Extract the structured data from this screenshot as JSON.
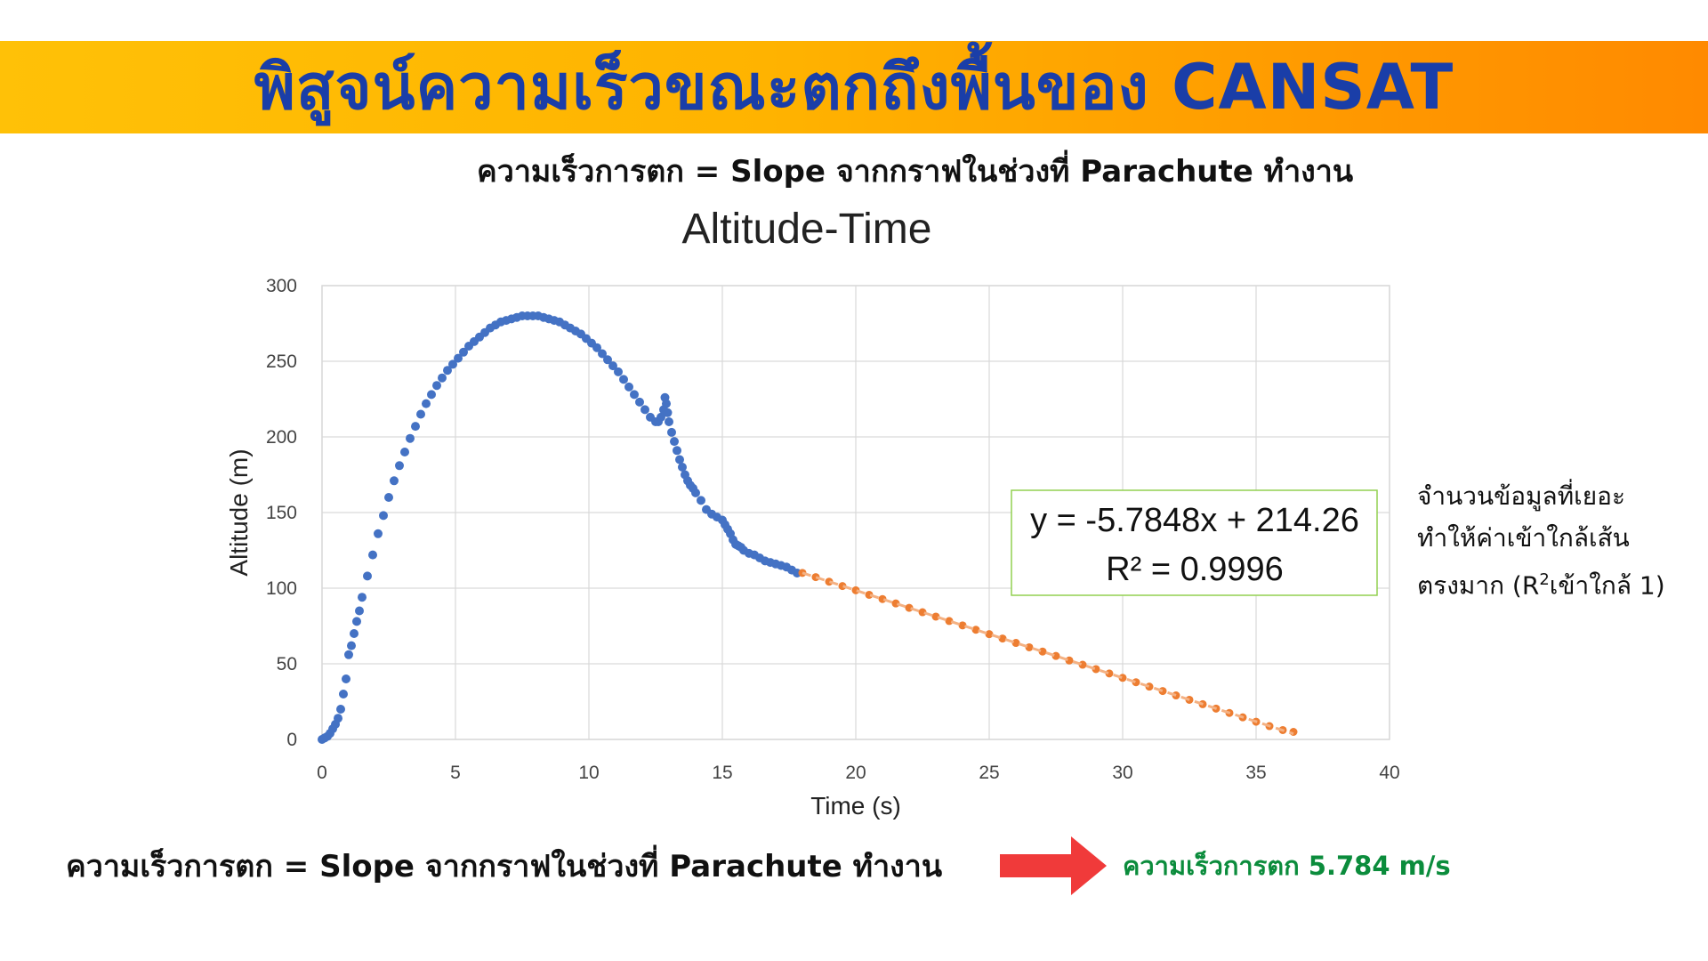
{
  "slide": {
    "title": "พิสูจน์ความเร็วขณะตกถึงพื้นของ CANSAT",
    "subtitle": "ความเร็วการตก = Slope จากกราฟในช่วงที่ Parachute ทำงาน",
    "bottom_text": "ความเร็วการตก = Slope จากกราฟในช่วงที่ Parachute ทำงาน",
    "result_text": "ความเร็วการตก 5.784 m/s",
    "note_lines": [
      "จำนวนข้อมูลที่เยอะ",
      "ทำให้ค่าเข้าใกล้เส้น",
      "ตรงมาก (R"
    ],
    "note_sup": "2",
    "note_tail": "เข้าใกล้ 1)",
    "colors": {
      "title": "#1a3ea8",
      "banner_start": "#ffc107",
      "banner_end": "#ff8a00",
      "result": "#0b8c3c",
      "arrow": "#f03a3a"
    }
  },
  "chart_data": {
    "type": "scatter",
    "title": "Altitude-Time",
    "xlabel": "Time (s)",
    "ylabel": "Altitude (m)",
    "xlim": [
      0,
      40
    ],
    "ylim": [
      0,
      300
    ],
    "xticks": [
      0,
      5,
      10,
      15,
      20,
      25,
      30,
      35,
      40
    ],
    "yticks": [
      0,
      50,
      100,
      150,
      200,
      250,
      300
    ],
    "grid": true,
    "series": [
      {
        "color": "#4472c4",
        "x": [
          0.0,
          0.1,
          0.2,
          0.3,
          0.4,
          0.5,
          0.6,
          0.7,
          0.8,
          0.9,
          1.0,
          1.1,
          1.2,
          1.3,
          1.4,
          1.5,
          1.7,
          1.9,
          2.1,
          2.3,
          2.5,
          2.7,
          2.9,
          3.1,
          3.3,
          3.5,
          3.7,
          3.9,
          4.1,
          4.3,
          4.5,
          4.7,
          4.9,
          5.1,
          5.3,
          5.5,
          5.7,
          5.9,
          6.1,
          6.3,
          6.5,
          6.7,
          6.9,
          7.1,
          7.3,
          7.5,
          7.7,
          7.9,
          8.1,
          8.3,
          8.5,
          8.7,
          8.9,
          9.1,
          9.3,
          9.5,
          9.7,
          9.9,
          10.1,
          10.3,
          10.5,
          10.7,
          10.9,
          11.1,
          11.3,
          11.5,
          11.7,
          11.9,
          12.1,
          12.3,
          12.5,
          12.6,
          12.7,
          12.8,
          12.85,
          12.9,
          12.95,
          13.0,
          13.1,
          13.2,
          13.3,
          13.4,
          13.5,
          13.6,
          13.7,
          13.8,
          13.9,
          14.0,
          14.2,
          14.4,
          14.6,
          14.8,
          15.0,
          15.1,
          15.2,
          15.3,
          15.4,
          15.5,
          15.6,
          15.7,
          15.8,
          16.0,
          16.2,
          16.4,
          16.6,
          16.8,
          17.0,
          17.2,
          17.4,
          17.6,
          17.8
        ],
        "y": [
          0,
          1,
          2,
          4,
          7,
          10,
          14,
          20,
          30,
          40,
          56,
          62,
          70,
          78,
          85,
          94,
          108,
          122,
          136,
          148,
          160,
          171,
          181,
          190,
          199,
          207,
          215,
          222,
          228,
          234,
          239,
          244,
          248,
          252,
          256,
          260,
          263,
          266,
          269,
          272,
          274,
          276,
          277,
          278,
          279,
          280,
          280,
          280,
          280,
          279,
          278,
          277,
          276,
          274,
          272,
          270,
          268,
          265,
          262,
          259,
          255,
          251,
          247,
          243,
          238,
          233,
          228,
          223,
          218,
          213,
          210,
          210,
          213,
          218,
          226,
          222,
          216,
          210,
          203,
          197,
          191,
          185,
          180,
          175,
          171,
          168,
          166,
          163,
          158,
          152,
          149,
          147,
          145,
          142,
          139,
          136,
          132,
          129,
          128,
          127,
          125,
          123,
          122,
          120,
          118,
          117,
          116,
          115,
          114,
          112,
          110
        ]
      },
      {
        "color": "#ed7d31",
        "x": [
          18.0,
          18.5,
          19.0,
          19.5,
          20.0,
          20.5,
          21.0,
          21.5,
          22.0,
          22.5,
          23.0,
          23.5,
          24.0,
          24.5,
          25.0,
          25.5,
          26.0,
          26.5,
          27.0,
          27.5,
          28.0,
          28.5,
          29.0,
          29.5,
          30.0,
          30.5,
          31.0,
          31.5,
          32.0,
          32.5,
          33.0,
          33.5,
          34.0,
          34.5,
          35.0,
          35.5,
          36.0,
          36.4
        ],
        "y": [
          110.1,
          107.3,
          104.3,
          101.4,
          98.6,
          95.6,
          92.8,
          89.9,
          87.0,
          84.1,
          81.2,
          78.3,
          75.4,
          72.5,
          69.6,
          66.7,
          63.8,
          60.9,
          58.1,
          55.2,
          52.2,
          49.4,
          46.5,
          43.6,
          40.7,
          37.8,
          34.9,
          32.0,
          29.1,
          26.2,
          23.3,
          20.4,
          17.5,
          14.6,
          11.7,
          8.8,
          6.2,
          5.0
        ]
      }
    ],
    "trendline": {
      "slope": -5.7848,
      "intercept": 214.26,
      "x_range": [
        18,
        36.4
      ],
      "color": "#f4b183",
      "dashed": true
    },
    "annotation": {
      "lines": [
        "y = -5.7848x + 214.26",
        "R² = 0.9996"
      ],
      "border_color": "#92d050"
    }
  }
}
